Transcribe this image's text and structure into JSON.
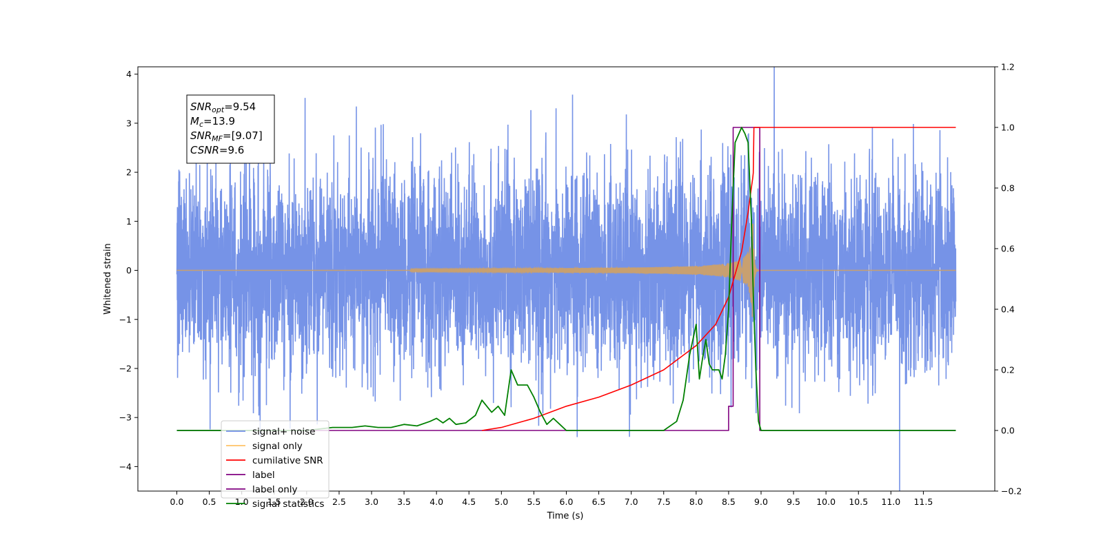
{
  "chart_data": {
    "type": "line",
    "xlabel": "Time (s)",
    "ylabel": "Whitened strain",
    "xlim": [
      -0.6,
      12.6
    ],
    "ylim": [
      -4.5,
      4.15
    ],
    "ylim_right": [
      -0.2,
      1.2
    ],
    "x_ticks": [
      0.0,
      0.5,
      1.0,
      1.5,
      2.0,
      2.5,
      3.0,
      3.5,
      4.0,
      4.5,
      5.0,
      5.5,
      6.0,
      6.5,
      7.0,
      7.5,
      8.0,
      8.5,
      9.0,
      9.5,
      10.0,
      10.5,
      11.0,
      11.5
    ],
    "x_tick_labels": [
      "0.0",
      "0.5",
      "1.0",
      "1.5",
      "2.0",
      "2.5",
      "3.0",
      "3.5",
      "4.0",
      "4.5",
      "5.0",
      "5.5",
      "6.0",
      "6.5",
      "7.0",
      "7.5",
      "8.0",
      "8.5",
      "9.0",
      "9.5",
      "10.0",
      "10.5",
      "11.0",
      "11.5"
    ],
    "y_ticks": [
      4,
      3,
      2,
      1,
      0,
      -1,
      -2,
      -3,
      -4
    ],
    "y_tick_labels": [
      "4",
      "3",
      "2",
      "1",
      "0",
      "−1",
      "−2",
      "−3",
      "−4"
    ],
    "y_right_ticks": [
      1.2,
      1.0,
      0.8,
      0.6,
      0.4,
      0.2,
      0.0,
      -0.2
    ],
    "y_right_tick_labels": [
      "1.2",
      "1.0",
      "0.8",
      "0.6",
      "0.4",
      "0.2",
      "0.0",
      "−0.2"
    ],
    "annotation": {
      "lines": [
        {
          "main": "SNR",
          "sub": "opt",
          "value": "=9.54"
        },
        {
          "main": "M",
          "sub": "c",
          "value": "=13.9"
        },
        {
          "main": "SNR",
          "sub": "MF",
          "value": "=[9.07]"
        },
        {
          "main": "CSNR",
          "sub": "",
          "value": "=9.6"
        }
      ]
    },
    "legend": {
      "position": "lower-left",
      "entries": [
        {
          "label": "signal+ noise",
          "color": "#6f8de6"
        },
        {
          "label": "signal only",
          "color": "#ffc266"
        },
        {
          "label": "cumilative SNR",
          "color": "#ff0000"
        },
        {
          "label": "label",
          "color": "#800080"
        },
        {
          "label": "label only",
          "color": "#800080"
        },
        {
          "label": "signal statistics",
          "color": "#008000"
        }
      ]
    },
    "series": [
      {
        "name": "signal+ noise",
        "axis": "left",
        "color": "#6f8de6",
        "description": "whitened noise, approx. standard deviation 1, 0 to 12 s"
      },
      {
        "name": "signal only",
        "axis": "left",
        "color": "#c8a070",
        "chirp": {
          "t_start": 3.6,
          "t_merge": 8.88,
          "peak_amplitude": 0.95
        }
      },
      {
        "name": "cumilative SNR",
        "axis": "right",
        "x": [
          4.7,
          5.0,
          5.5,
          6.0,
          6.5,
          7.0,
          7.5,
          8.0,
          8.3,
          8.5,
          8.7,
          8.8,
          8.85,
          8.87,
          8.88,
          8.89,
          12.0
        ],
        "y": [
          0.0,
          0.01,
          0.04,
          0.08,
          0.11,
          0.15,
          0.2,
          0.28,
          0.35,
          0.44,
          0.59,
          0.72,
          0.8,
          0.83,
          0.85,
          1.0,
          1.0
        ]
      },
      {
        "name": "label",
        "axis": "right",
        "x": [
          0.0,
          8.5,
          8.5,
          8.57,
          8.57,
          8.98,
          8.98,
          12.0
        ],
        "y": [
          0.0,
          0.0,
          0.08,
          0.08,
          1.0,
          1.0,
          0.0,
          0.0
        ]
      },
      {
        "name": "signal statistics",
        "axis": "right",
        "x": [
          0.0,
          2.0,
          2.4,
          2.7,
          2.9,
          3.1,
          3.3,
          3.5,
          3.7,
          3.9,
          4.0,
          4.1,
          4.2,
          4.3,
          4.45,
          4.6,
          4.7,
          4.85,
          4.95,
          5.05,
          5.15,
          5.25,
          5.4,
          5.5,
          5.6,
          5.7,
          5.8,
          5.9,
          6.0,
          6.2,
          6.5,
          7.0,
          7.5,
          7.7,
          7.8,
          7.9,
          8.0,
          8.05,
          8.1,
          8.15,
          8.2,
          8.25,
          8.3,
          8.35,
          8.4,
          8.45,
          8.5,
          8.55,
          8.6,
          8.7,
          8.75,
          8.8,
          8.85,
          8.88,
          8.92,
          8.96,
          9.0,
          9.05,
          12.0
        ],
        "y": [
          0.0,
          0.0,
          0.01,
          0.01,
          0.015,
          0.01,
          0.01,
          0.02,
          0.015,
          0.03,
          0.04,
          0.025,
          0.04,
          0.02,
          0.025,
          0.05,
          0.1,
          0.06,
          0.08,
          0.05,
          0.2,
          0.15,
          0.15,
          0.11,
          0.06,
          0.02,
          0.04,
          0.02,
          0.0,
          0.0,
          0.0,
          0.0,
          0.0,
          0.03,
          0.1,
          0.25,
          0.35,
          0.17,
          0.24,
          0.3,
          0.22,
          0.2,
          0.2,
          0.2,
          0.17,
          0.25,
          0.4,
          0.7,
          0.95,
          1.0,
          0.98,
          0.95,
          0.7,
          0.45,
          0.2,
          0.03,
          0.0,
          0.0,
          0.0
        ]
      }
    ]
  }
}
